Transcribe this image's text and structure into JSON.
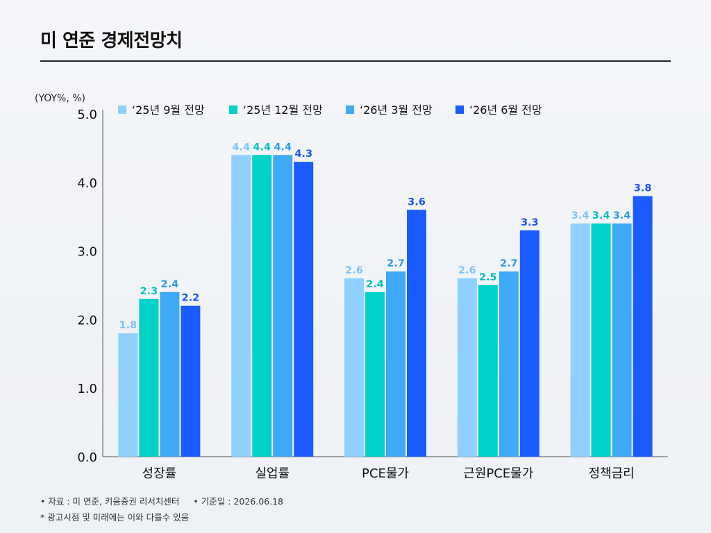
{
  "title": "미 연준 경제전망치",
  "footnotes": {
    "source": "• 자료 : 미 연준, 키움증권 리서치센터",
    "date": "• 기준일 : 2026.06.18",
    "disclaimer": "* 광고시점 및 미래에는 이와 다를수 있음"
  },
  "chart_data": {
    "type": "bar",
    "unit_label": "(YOY%, %)",
    "ylim": [
      0,
      5
    ],
    "yticks": [
      "0.0",
      "1.0",
      "2.0",
      "3.0",
      "4.0",
      "5.0"
    ],
    "categories": [
      "성장률",
      "실업률",
      "PCE물가",
      "근원PCE물가",
      "정책금리"
    ],
    "series": [
      {
        "name": "‘25년 9월 전망",
        "color": "#8fd0ff",
        "label_color": "#7ec4f5",
        "values": [
          1.8,
          4.4,
          2.6,
          2.6,
          3.4
        ]
      },
      {
        "name": "‘25년 12월 전망",
        "color": "#00d1c9",
        "label_color": "#00c1b8",
        "values": [
          2.3,
          4.4,
          2.4,
          2.5,
          3.4
        ]
      },
      {
        "name": "‘26년 3월 전망",
        "color": "#3fa9f5",
        "label_color": "#2f9ae8",
        "values": [
          2.4,
          4.4,
          2.7,
          2.7,
          3.4
        ]
      },
      {
        "name": "‘26년 6월 전망",
        "color": "#1a5cff",
        "label_color": "#1a55f0",
        "values": [
          2.2,
          4.3,
          3.6,
          3.3,
          3.8
        ]
      }
    ],
    "grid": false,
    "legend_position": "top"
  }
}
